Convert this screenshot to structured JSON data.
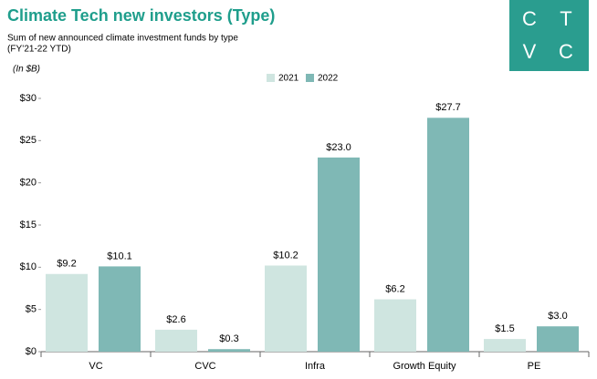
{
  "chart_data": {
    "type": "bar",
    "title": "Climate Tech new investors (Type)",
    "subtitle": [
      "Sum of new announced climate investment funds by type",
      "(FY’21-22 YTD)"
    ],
    "unit_note": "(In $B)",
    "logo": [
      "C",
      "T",
      "V",
      "C"
    ],
    "categories": [
      "VC",
      "CVC",
      "Infra",
      "Growth Equity",
      "PE"
    ],
    "series": [
      {
        "name": "2021",
        "color": "#cfe5e0",
        "values": [
          9.2,
          2.6,
          10.2,
          6.2,
          1.5
        ],
        "value_labels": [
          "$9.2",
          "$2.6",
          "$10.2",
          "$6.2",
          "$1.5"
        ]
      },
      {
        "name": "2022",
        "color": "#7fb8b5",
        "values": [
          10.1,
          0.3,
          23.0,
          27.7,
          3.0
        ],
        "value_labels": [
          "$10.1",
          "$0.3",
          "$23.0",
          "$27.7",
          "$3.0"
        ]
      }
    ],
    "ylim": [
      0,
      30
    ],
    "yticks": [
      {
        "value": 0,
        "label": "$0"
      },
      {
        "value": 5,
        "label": "$5"
      },
      {
        "value": 10,
        "label": "$10"
      },
      {
        "value": 15,
        "label": "$15"
      },
      {
        "value": 20,
        "label": "$20"
      },
      {
        "value": 25,
        "label": "$25"
      },
      {
        "value": 30,
        "label": "$30"
      }
    ],
    "grid": false
  }
}
